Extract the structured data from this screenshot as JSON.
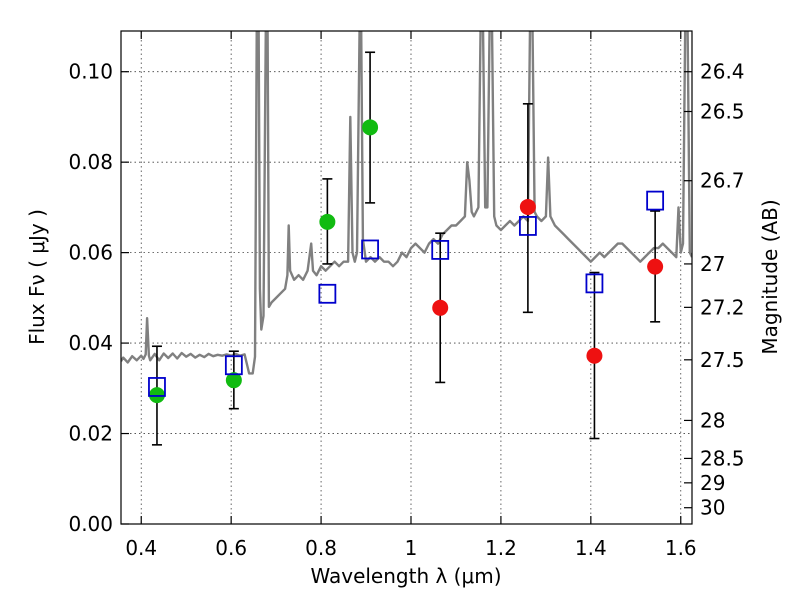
{
  "chart_data": {
    "type": "scatter",
    "title": "",
    "xlabel": "Wavelength  λ (μm)",
    "ylabel": "Flux  Fν  ( μJy )",
    "ylabel_right": "Magnitude (AB)",
    "xlim": [
      0.355,
      1.625
    ],
    "ylim": [
      0.0,
      0.109
    ],
    "x_ticks": [
      0.4,
      0.6,
      0.8,
      1.0,
      1.2,
      1.4,
      1.6
    ],
    "x_tick_labels": [
      "0.4",
      "0.6",
      "0.8",
      "1",
      "1.2",
      "1.4",
      "1.6"
    ],
    "y_ticks": [
      0.0,
      0.02,
      0.04,
      0.06,
      0.08,
      0.1
    ],
    "y_tick_labels": [
      "0.00",
      "0.02",
      "0.04",
      "0.06",
      "0.08",
      "0.10"
    ],
    "right_axis_ticks": [
      {
        "label": "26.4",
        "flux": 0.1
      },
      {
        "label": "26.5",
        "flux": 0.0912
      },
      {
        "label": "26.7",
        "flux": 0.0759
      },
      {
        "label": "27",
        "flux": 0.0575
      },
      {
        "label": "27.2",
        "flux": 0.0479
      },
      {
        "label": "27.5",
        "flux": 0.0363
      },
      {
        "label": "28",
        "flux": 0.0229
      },
      {
        "label": "28.5",
        "flux": 0.0145
      },
      {
        "label": "29",
        "flux": 0.0091
      },
      {
        "label": "30",
        "flux": 0.0036
      }
    ],
    "grid": true,
    "colors": {
      "spectrum": "#808080",
      "green_points": "#11bb11",
      "red_points": "#ee1111",
      "model_squares": "#0000cc",
      "error_bars": "#000000"
    },
    "series": [
      {
        "marker": "circle",
        "color": "#11bb11",
        "points": [
          {
            "x": 0.435,
            "y": 0.0285,
            "yerr_low": 0.0175,
            "yerr_high": 0.0393
          },
          {
            "x": 0.606,
            "y": 0.0318,
            "yerr_low": 0.0255,
            "yerr_high": 0.0382
          },
          {
            "x": 0.814,
            "y": 0.0668,
            "yerr_low": 0.0575,
            "yerr_high": 0.0763
          },
          {
            "x": 0.909,
            "y": 0.0877,
            "yerr_low": 0.071,
            "yerr_high": 0.1043
          }
        ]
      },
      {
        "marker": "circle",
        "color": "#ee1111",
        "points": [
          {
            "x": 1.065,
            "y": 0.0478,
            "yerr_low": 0.0313,
            "yerr_high": 0.0643
          },
          {
            "x": 1.26,
            "y": 0.0701,
            "yerr_low": 0.0468,
            "yerr_high": 0.0929
          },
          {
            "x": 1.408,
            "y": 0.0372,
            "yerr_low": 0.0189,
            "yerr_high": 0.0556
          },
          {
            "x": 1.543,
            "y": 0.0569,
            "yerr_low": 0.0447,
            "yerr_high": 0.0692
          }
        ]
      },
      {
        "marker": "square",
        "color": "#0000cc",
        "points": [
          {
            "x": 0.435,
            "y": 0.0303
          },
          {
            "x": 0.606,
            "y": 0.0351
          },
          {
            "x": 0.814,
            "y": 0.0509
          },
          {
            "x": 0.909,
            "y": 0.0607
          },
          {
            "x": 1.065,
            "y": 0.0606
          },
          {
            "x": 1.26,
            "y": 0.0659
          },
          {
            "x": 1.408,
            "y": 0.0532
          },
          {
            "x": 1.543,
            "y": 0.0715
          }
        ]
      }
    ],
    "spectrum": {
      "color": "#808080",
      "points": [
        [
          0.355,
          0.036
        ],
        [
          0.36,
          0.0368
        ],
        [
          0.37,
          0.0357
        ],
        [
          0.38,
          0.0371
        ],
        [
          0.39,
          0.0362
        ],
        [
          0.4,
          0.0372
        ],
        [
          0.405,
          0.0365
        ],
        [
          0.41,
          0.0375
        ],
        [
          0.413,
          0.0455
        ],
        [
          0.417,
          0.0372
        ],
        [
          0.42,
          0.0362
        ],
        [
          0.43,
          0.0376
        ],
        [
          0.44,
          0.0362
        ],
        [
          0.45,
          0.0377
        ],
        [
          0.46,
          0.0367
        ],
        [
          0.47,
          0.0377
        ],
        [
          0.48,
          0.0366
        ],
        [
          0.49,
          0.0378
        ],
        [
          0.5,
          0.037
        ],
        [
          0.51,
          0.0376
        ],
        [
          0.52,
          0.0368
        ],
        [
          0.53,
          0.0374
        ],
        [
          0.54,
          0.0369
        ],
        [
          0.55,
          0.0376
        ],
        [
          0.56,
          0.0371
        ],
        [
          0.57,
          0.0374
        ],
        [
          0.58,
          0.0372
        ],
        [
          0.59,
          0.0375
        ],
        [
          0.6,
          0.0372
        ],
        [
          0.61,
          0.0376
        ],
        [
          0.62,
          0.0372
        ],
        [
          0.63,
          0.0375
        ],
        [
          0.64,
          0.0333
        ],
        [
          0.648,
          0.0333
        ],
        [
          0.653,
          0.037
        ],
        [
          0.657,
          0.112
        ],
        [
          0.661,
          0.112
        ],
        [
          0.664,
          0.052
        ],
        [
          0.667,
          0.043
        ],
        [
          0.672,
          0.046
        ],
        [
          0.677,
          0.1095
        ],
        [
          0.681,
          0.1095
        ],
        [
          0.684,
          0.048
        ],
        [
          0.69,
          0.049
        ],
        [
          0.7,
          0.05
        ],
        [
          0.71,
          0.051
        ],
        [
          0.72,
          0.052
        ],
        [
          0.725,
          0.055
        ],
        [
          0.728,
          0.066
        ],
        [
          0.731,
          0.056
        ],
        [
          0.74,
          0.054
        ],
        [
          0.75,
          0.055
        ],
        [
          0.76,
          0.054
        ],
        [
          0.77,
          0.056
        ],
        [
          0.778,
          0.062
        ],
        [
          0.782,
          0.056
        ],
        [
          0.79,
          0.055
        ],
        [
          0.8,
          0.057
        ],
        [
          0.81,
          0.056
        ],
        [
          0.82,
          0.057
        ],
        [
          0.83,
          0.058
        ],
        [
          0.84,
          0.057
        ],
        [
          0.85,
          0.058
        ],
        [
          0.86,
          0.058
        ],
        [
          0.865,
          0.09
        ],
        [
          0.87,
          0.06
        ],
        [
          0.875,
          0.058
        ],
        [
          0.88,
          0.06
        ],
        [
          0.886,
          0.112
        ],
        [
          0.889,
          0.112
        ],
        [
          0.893,
          0.063
        ],
        [
          0.9,
          0.058
        ],
        [
          0.91,
          0.059
        ],
        [
          0.92,
          0.058
        ],
        [
          0.93,
          0.059
        ],
        [
          0.94,
          0.058
        ],
        [
          0.95,
          0.058
        ],
        [
          0.96,
          0.057
        ],
        [
          0.97,
          0.058
        ],
        [
          0.98,
          0.06
        ],
        [
          0.99,
          0.059
        ],
        [
          1.0,
          0.061
        ],
        [
          1.01,
          0.062
        ],
        [
          1.02,
          0.061
        ],
        [
          1.03,
          0.06
        ],
        [
          1.04,
          0.062
        ],
        [
          1.05,
          0.063
        ],
        [
          1.06,
          0.062
        ],
        [
          1.07,
          0.064
        ],
        [
          1.08,
          0.065
        ],
        [
          1.09,
          0.066
        ],
        [
          1.1,
          0.066
        ],
        [
          1.11,
          0.067
        ],
        [
          1.12,
          0.068
        ],
        [
          1.125,
          0.08
        ],
        [
          1.13,
          0.076
        ],
        [
          1.135,
          0.069
        ],
        [
          1.14,
          0.068
        ],
        [
          1.15,
          0.07
        ],
        [
          1.155,
          0.112
        ],
        [
          1.16,
          0.112
        ],
        [
          1.165,
          0.07
        ],
        [
          1.17,
          0.07
        ],
        [
          1.175,
          0.112
        ],
        [
          1.18,
          0.112
        ],
        [
          1.185,
          0.068
        ],
        [
          1.19,
          0.066
        ],
        [
          1.2,
          0.065
        ],
        [
          1.21,
          0.066
        ],
        [
          1.22,
          0.067
        ],
        [
          1.23,
          0.066
        ],
        [
          1.24,
          0.067
        ],
        [
          1.25,
          0.068
        ],
        [
          1.26,
          0.067
        ],
        [
          1.265,
          0.112
        ],
        [
          1.27,
          0.112
        ],
        [
          1.275,
          0.069
        ],
        [
          1.28,
          0.068
        ],
        [
          1.29,
          0.067
        ],
        [
          1.3,
          0.068
        ],
        [
          1.305,
          0.081
        ],
        [
          1.31,
          0.068
        ],
        [
          1.32,
          0.066
        ],
        [
          1.33,
          0.065
        ],
        [
          1.34,
          0.064
        ],
        [
          1.35,
          0.063
        ],
        [
          1.36,
          0.062
        ],
        [
          1.37,
          0.061
        ],
        [
          1.38,
          0.06
        ],
        [
          1.39,
          0.059
        ],
        [
          1.4,
          0.058
        ],
        [
          1.41,
          0.059
        ],
        [
          1.42,
          0.06
        ],
        [
          1.43,
          0.059
        ],
        [
          1.44,
          0.06
        ],
        [
          1.45,
          0.061
        ],
        [
          1.46,
          0.062
        ],
        [
          1.47,
          0.062
        ],
        [
          1.48,
          0.061
        ],
        [
          1.49,
          0.06
        ],
        [
          1.5,
          0.059
        ],
        [
          1.51,
          0.058
        ],
        [
          1.52,
          0.059
        ],
        [
          1.53,
          0.06
        ],
        [
          1.54,
          0.061
        ],
        [
          1.55,
          0.061
        ],
        [
          1.56,
          0.062
        ],
        [
          1.57,
          0.061
        ],
        [
          1.58,
          0.06
        ],
        [
          1.59,
          0.059
        ],
        [
          1.595,
          0.07
        ],
        [
          1.6,
          0.06
        ],
        [
          1.605,
          0.062
        ],
        [
          1.61,
          0.112
        ],
        [
          1.615,
          0.112
        ],
        [
          1.62,
          0.06
        ],
        [
          1.625,
          0.059
        ]
      ]
    }
  }
}
